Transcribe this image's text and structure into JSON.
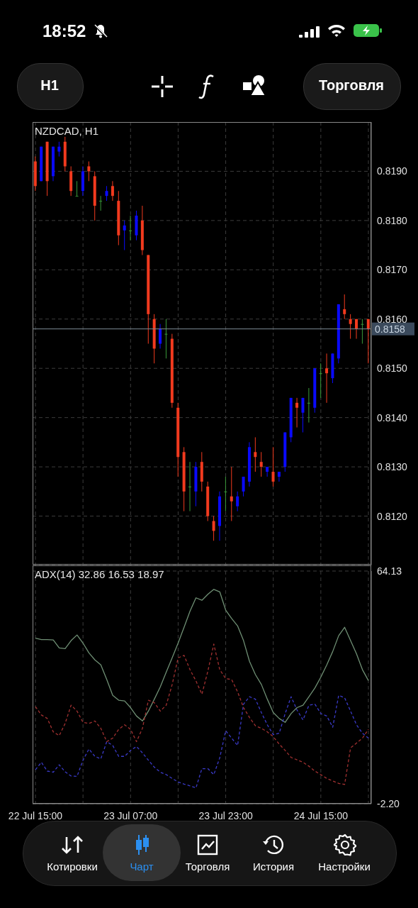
{
  "chart_data": [
    {
      "type": "candlestick",
      "title": "NZDCAD, H1",
      "categories": [
        null,
        null,
        null,
        null,
        null,
        null,
        null,
        null,
        null,
        null,
        null,
        null,
        null,
        null,
        null,
        null,
        null,
        null,
        null,
        null,
        null,
        null,
        null,
        null,
        null,
        null,
        null,
        null,
        null,
        null,
        null,
        null,
        null,
        null,
        null,
        null,
        null,
        null,
        null,
        null,
        null,
        null,
        null,
        null,
        null,
        null,
        null,
        null,
        null,
        null,
        null,
        null,
        null,
        null,
        null,
        null,
        null
      ],
      "ohlc": [
        [
          0.8192,
          0.8193,
          0.8186,
          0.8187
        ],
        [
          0.8188,
          0.8195,
          0.8188,
          0.8195
        ],
        [
          0.8196,
          0.8196,
          0.8185,
          0.8188
        ],
        [
          0.8189,
          0.8195,
          0.8188,
          0.8195
        ],
        [
          0.8194,
          0.8196,
          0.8193,
          0.8195
        ],
        [
          0.8196,
          0.8197,
          0.819,
          0.8191
        ],
        [
          0.819,
          0.8191,
          0.8185,
          0.8186
        ],
        [
          0.8185,
          0.8188,
          0.8185,
          0.8185
        ],
        [
          0.8186,
          0.8191,
          0.8185,
          0.819
        ],
        [
          0.8191,
          0.8192,
          0.8188,
          0.819
        ],
        [
          0.8189,
          0.819,
          0.818,
          0.8183
        ],
        [
          0.8184,
          0.8185,
          0.8182,
          0.8184
        ],
        [
          0.8185,
          0.8187,
          0.8184,
          0.8186
        ],
        [
          0.8187,
          0.8188,
          0.8184,
          0.8185
        ],
        [
          0.8184,
          0.8186,
          0.8175,
          0.8177
        ],
        [
          0.8178,
          0.818,
          0.8174,
          0.8179
        ],
        [
          0.8178,
          0.8181,
          0.8176,
          0.8178
        ],
        [
          0.8177,
          0.8182,
          0.8176,
          0.8181
        ],
        [
          0.818,
          0.8183,
          0.8173,
          0.8174
        ],
        [
          0.8173,
          0.8173,
          0.8155,
          0.8161
        ],
        [
          0.816,
          0.8161,
          0.8151,
          0.8154
        ],
        [
          0.8155,
          0.8159,
          0.8154,
          0.8158
        ],
        [
          0.8157,
          0.816,
          0.8152,
          0.8157
        ],
        [
          0.8156,
          0.8157,
          0.8142,
          0.8143
        ],
        [
          0.8142,
          0.8143,
          0.8128,
          0.8132
        ],
        [
          0.8133,
          0.8134,
          0.8121,
          0.8125
        ],
        [
          0.8126,
          0.8131,
          0.8121,
          0.8126
        ],
        [
          0.8125,
          0.8131,
          0.8122,
          0.813
        ],
        [
          0.8131,
          0.8133,
          0.8125,
          0.8127
        ],
        [
          0.8126,
          0.8127,
          0.8119,
          0.812
        ],
        [
          0.8119,
          0.812,
          0.8115,
          0.8117
        ],
        [
          0.8118,
          0.8125,
          0.8115,
          0.8124
        ],
        [
          0.8125,
          0.8128,
          0.8121,
          0.8125
        ],
        [
          0.8124,
          0.813,
          0.8119,
          0.8123
        ],
        [
          0.8122,
          0.8125,
          0.8121,
          0.8124
        ],
        [
          0.8125,
          0.8128,
          0.8124,
          0.8128
        ],
        [
          0.8127,
          0.8135,
          0.8126,
          0.8134
        ],
        [
          0.8133,
          0.8136,
          0.8129,
          0.8132
        ],
        [
          0.8131,
          0.8133,
          0.8128,
          0.813
        ],
        [
          0.8129,
          0.813,
          0.8128,
          0.813
        ],
        [
          0.8129,
          0.8134,
          0.8126,
          0.8127
        ],
        [
          0.8128,
          0.8129,
          0.8127,
          0.8129
        ],
        [
          0.813,
          0.8137,
          0.8129,
          0.8137
        ],
        [
          0.8136,
          0.8144,
          0.8135,
          0.8144
        ],
        [
          0.8143,
          0.8144,
          0.8138,
          0.8142
        ],
        [
          0.8141,
          0.8144,
          0.8137,
          0.8144
        ],
        [
          0.8143,
          0.8146,
          0.8139,
          0.8143
        ],
        [
          0.8142,
          0.815,
          0.8141,
          0.815
        ],
        [
          0.8149,
          0.8151,
          0.8144,
          0.8149
        ],
        [
          0.815,
          0.8153,
          0.8143,
          0.8149
        ],
        [
          0.8148,
          0.8153,
          0.8147,
          0.8153
        ],
        [
          0.8152,
          0.8163,
          0.8151,
          0.8163
        ],
        [
          0.8162,
          0.8165,
          0.816,
          0.8161
        ],
        [
          0.816,
          0.8161,
          0.8156,
          0.8159
        ],
        [
          0.816,
          0.816,
          0.8156,
          0.8158
        ],
        [
          0.8159,
          0.816,
          0.8155,
          0.8159
        ],
        [
          0.816,
          0.816,
          0.8151,
          0.8158
        ]
      ],
      "colors": [
        "#f23a1e",
        "#0a0aff",
        "#f23a1e",
        "#0a0aff",
        "#0a0aff",
        "#f23a1e",
        "#f23a1e",
        "#3a9a3a",
        "#0a0aff",
        "#f23a1e",
        "#f23a1e",
        "#3a9a3a",
        "#0a0aff",
        "#f23a1e",
        "#f23a1e",
        "#0a0aff",
        "#3a9a3a",
        "#0a0aff",
        "#f23a1e",
        "#f23a1e",
        "#f23a1e",
        "#0a0aff",
        "#3a9a3a",
        "#f23a1e",
        "#f23a1e",
        "#f23a1e",
        "#3a9a3a",
        "#0a0aff",
        "#f23a1e",
        "#f23a1e",
        "#f23a1e",
        "#0a0aff",
        "#3a9a3a",
        "#f23a1e",
        "#0a0aff",
        "#0a0aff",
        "#0a0aff",
        "#f23a1e",
        "#f23a1e",
        "#0a0aff",
        "#f23a1e",
        "#0a0aff",
        "#0a0aff",
        "#0a0aff",
        "#f23a1e",
        "#0a0aff",
        "#3a9a3a",
        "#0a0aff",
        "#3a9a3a",
        "#f23a1e",
        "#0a0aff",
        "#0a0aff",
        "#f23a1e",
        "#f23a1e",
        "#f23a1e",
        "#3a9a3a",
        "#f23a1e"
      ],
      "ylim": [
        0.811,
        0.82
      ],
      "yticks": [
        {
          "value": 0.812,
          "label": "0.8120"
        },
        {
          "value": 0.813,
          "label": "0.8130"
        },
        {
          "value": 0.814,
          "label": "0.8140"
        },
        {
          "value": 0.815,
          "label": "0.8150"
        },
        {
          "value": 0.816,
          "label": "0.8160"
        },
        {
          "value": 0.817,
          "label": "0.8170"
        },
        {
          "value": 0.818,
          "label": "0.8180"
        },
        {
          "value": 0.819,
          "label": "0.8190"
        }
      ],
      "ref_lines": [
        {
          "axis": "y",
          "value": 0.8158,
          "label": "0.8158",
          "color": "#7d8a96"
        }
      ],
      "grid": true,
      "tick_labels": "y",
      "annotations": [
        "18:52",
        "H1",
        "Торговля",
        "Котировки",
        "Чарт",
        "Торговля",
        "История",
        "Настройки"
      ]
    },
    {
      "type": "line",
      "title": "ADX(14) 32.86 16.53 18.97",
      "categories": [
        "22 Jul 15:00",
        null,
        null,
        null,
        null,
        null,
        null,
        null,
        null,
        null,
        null,
        null,
        null,
        null,
        null,
        null,
        "23 Jul 07:00",
        null,
        null,
        null,
        null,
        null,
        null,
        null,
        null,
        null,
        null,
        null,
        null,
        null,
        null,
        null,
        "23 Jul 23:00",
        null,
        null,
        null,
        null,
        null,
        null,
        null,
        null,
        null,
        null,
        null,
        null,
        null,
        null,
        null,
        "24 Jul 15:00",
        null,
        null,
        null,
        null,
        null,
        null,
        null,
        null
      ],
      "series": [
        {
          "color": "#6f8f74",
          "line_style": "solid",
          "values": [
            45.0,
            44.6,
            44.6,
            44.5,
            42.2,
            42.0,
            44.3,
            45.9,
            43.6,
            40.8,
            38.8,
            37.4,
            33.2,
            28.7,
            27.3,
            27.1,
            25.2,
            22.8,
            21.4,
            24.2,
            27.6,
            31.1,
            35.3,
            39.4,
            43.6,
            48.1,
            52.7,
            56.5,
            55.8,
            57.5,
            58.9,
            58.2,
            53.0,
            50.6,
            48.5,
            44.3,
            38.4,
            34.6,
            31.8,
            27.6,
            23.8,
            22.1,
            21.0,
            23.5,
            25.2,
            25.9,
            28.3,
            30.8,
            33.9,
            37.4,
            41.2,
            45.7,
            48.1,
            44.3,
            40.5,
            36.0,
            32.9
          ]
        },
        {
          "color": "#3a3ac8",
          "line_style": "dashed",
          "values": [
            7.5,
            9.6,
            7.1,
            6.8,
            8.9,
            6.9,
            5.7,
            5.6,
            10.2,
            13.4,
            11.3,
            10.6,
            15.5,
            14.4,
            11.3,
            11.3,
            13.0,
            14.1,
            12.3,
            10.2,
            8.2,
            6.8,
            6.1,
            5.0,
            4.0,
            3.4,
            2.9,
            2.3,
            7.8,
            7.8,
            6.1,
            10.9,
            18.6,
            16.5,
            14.4,
            26.2,
            28.3,
            27.6,
            23.8,
            20.3,
            17.5,
            17.9,
            23.5,
            28.3,
            24.5,
            21.7,
            25.9,
            26.2,
            23.5,
            22.8,
            19.6,
            28.7,
            28.0,
            24.2,
            20.3,
            17.9,
            16.5
          ]
        },
        {
          "color": "#a03030",
          "line_style": "dashed",
          "values": [
            25.5,
            23.1,
            22.1,
            18.3,
            17.2,
            20.7,
            25.9,
            24.2,
            21.0,
            20.7,
            21.4,
            19.3,
            15.5,
            16.5,
            19.0,
            20.3,
            19.0,
            15.5,
            19.3,
            27.3,
            26.6,
            24.2,
            25.9,
            31.8,
            39.4,
            40.1,
            36.0,
            32.8,
            29.0,
            35.6,
            43.3,
            36.0,
            33.5,
            33.2,
            29.7,
            25.2,
            22.4,
            20.0,
            19.3,
            18.3,
            16.9,
            14.8,
            13.0,
            11.0,
            10.3,
            9.6,
            8.5,
            7.1,
            6.1,
            5.0,
            4.3,
            3.6,
            3.3,
            13.7,
            15.1,
            16.5,
            19.0
          ]
        }
      ],
      "ylim": [
        -2.2,
        64.13
      ],
      "yticks": [
        {
          "value": -2.2,
          "label": "-2.20"
        },
        64.13
      ],
      "grid": true,
      "marker": "none"
    }
  ]
}
